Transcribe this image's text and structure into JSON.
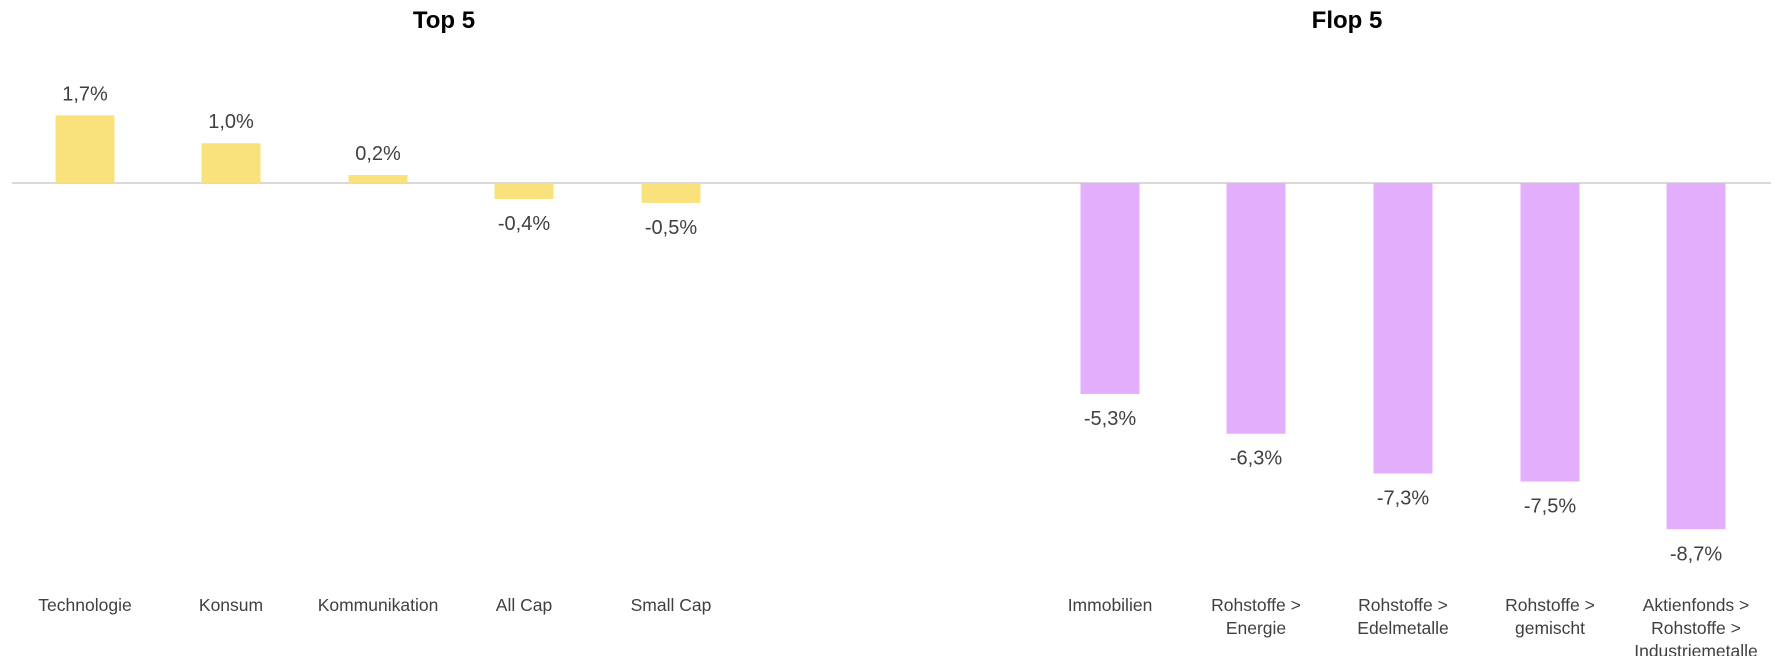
{
  "chart_data": [
    {
      "type": "bar",
      "title": "Top 5",
      "categories": [
        "Technologie",
        "Konsum",
        "Kommunikation",
        "All Cap",
        "Small Cap"
      ],
      "values": [
        1.7,
        1.0,
        0.2,
        -0.4,
        -0.5
      ],
      "value_labels": [
        "1,7%",
        "1,0%",
        "0,2%",
        "-0,4%",
        "-0,5%"
      ],
      "unit": "%",
      "color": "#f9e27c",
      "xlabel": "",
      "ylabel": "",
      "grid": false,
      "legend": "none"
    },
    {
      "type": "bar",
      "title": "Flop 5",
      "categories": [
        "Immobilien",
        "Rohstoffe > Energie",
        "Rohstoffe > Edelmetalle",
        "Rohstoffe > gemischt",
        "Aktienfonds > Rohstoffe > Industriemetalle"
      ],
      "values": [
        -5.3,
        -6.3,
        -7.3,
        -7.5,
        -8.7
      ],
      "value_labels": [
        "-5,3%",
        "-6,3%",
        "-7,3%",
        "-7,5%",
        "-8,7%"
      ],
      "unit": "%",
      "color": "#e3aefc",
      "xlabel": "",
      "ylabel": "",
      "grid": false,
      "legend": "none"
    }
  ]
}
